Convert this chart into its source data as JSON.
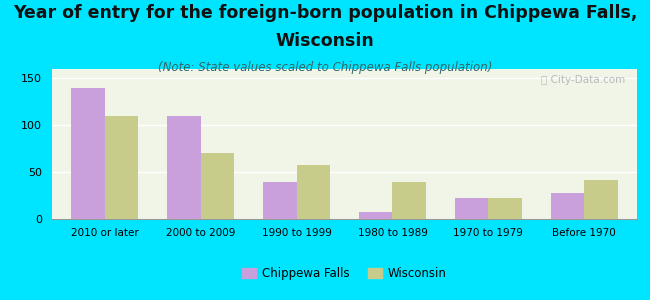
{
  "categories": [
    "2010 or later",
    "2000 to 2009",
    "1990 to 1999",
    "1980 to 1989",
    "1970 to 1979",
    "Before 1970"
  ],
  "chippewa_falls": [
    140,
    110,
    40,
    8,
    22,
    28
  ],
  "wisconsin": [
    110,
    70,
    58,
    40,
    22,
    42
  ],
  "chippewa_color": "#c9a0dc",
  "wisconsin_color": "#c8cc8a",
  "background_color": "#00e5ff",
  "plot_bg": "#f0f5e8",
  "title_line1": "Year of entry for the foreign-born population in Chippewa Falls,",
  "title_line2": "Wisconsin",
  "subtitle": "(Note: State values scaled to Chippewa Falls population)",
  "title_fontsize": 12.5,
  "subtitle_fontsize": 8.5,
  "ylim": [
    0,
    160
  ],
  "yticks": [
    0,
    50,
    100,
    150
  ],
  "bar_width": 0.35,
  "legend_labels": [
    "Chippewa Falls",
    "Wisconsin"
  ],
  "watermark": "ⓘ City-Data.com"
}
